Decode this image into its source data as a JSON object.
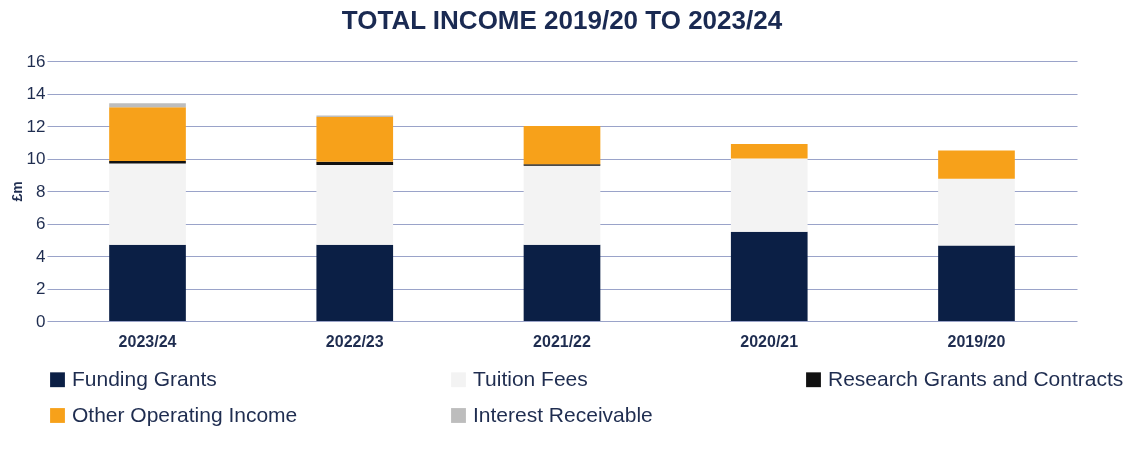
{
  "chart_data": {
    "type": "bar",
    "title": "TOTAL INCOME 2019/20 TO 2023/24",
    "ylabel": "£m",
    "categories": [
      "2023/24",
      "2022/23",
      "2021/22",
      "2020/21",
      "2019/20"
    ],
    "stacked": true,
    "series": [
      {
        "name": "Funding Grants",
        "color": "#0b1f45",
        "values": [
          4.7,
          4.7,
          4.7,
          5.5,
          4.65
        ]
      },
      {
        "name": "Tuition Fees",
        "color": "#f3f3f3",
        "values": [
          5.0,
          4.9,
          4.85,
          4.5,
          4.1
        ]
      },
      {
        "name": "Research Grants and Contracts",
        "color": "#111111",
        "values": [
          0.15,
          0.2,
          0.1,
          0.0,
          0.0
        ]
      },
      {
        "name": "Other Operating Income",
        "color": "#f7a11a",
        "values": [
          3.3,
          2.75,
          2.35,
          0.9,
          1.75
        ]
      },
      {
        "name": "Interest Receivable",
        "color": "#bdbdbd",
        "values": [
          0.25,
          0.1,
          0.0,
          0.0,
          0.0
        ]
      }
    ],
    "ylim": [
      0,
      16
    ],
    "yticks": [
      0,
      2,
      4,
      6,
      8,
      10,
      12,
      14,
      16
    ],
    "grid": "y",
    "legend": "bottom"
  }
}
